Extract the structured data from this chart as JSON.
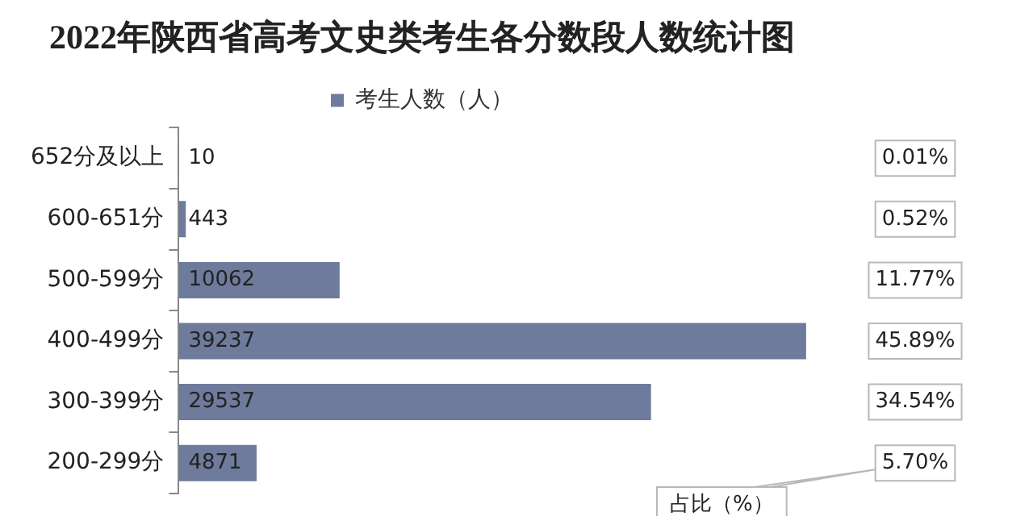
{
  "chart_data": {
    "type": "bar",
    "orientation": "horizontal",
    "title": "2022年陕西省高考文史类考生各分数段人数统计图",
    "categories": [
      "652分及以上",
      "600-651分",
      "500-599分",
      "400-499分",
      "300-399分",
      "200-299分"
    ],
    "series": [
      {
        "name": "考生人数（人）",
        "color": "#6f7b9c",
        "values": [
          10,
          443,
          10062,
          39237,
          29537,
          4871
        ]
      }
    ],
    "data_labels": true,
    "legend": "top",
    "grid": false,
    "tick_labels": "y",
    "annotations": [
      "0.01%",
      "0.52%",
      "11.77%",
      "45.89%",
      "34.54%",
      "5.70%",
      "占比（%）"
    ]
  }
}
